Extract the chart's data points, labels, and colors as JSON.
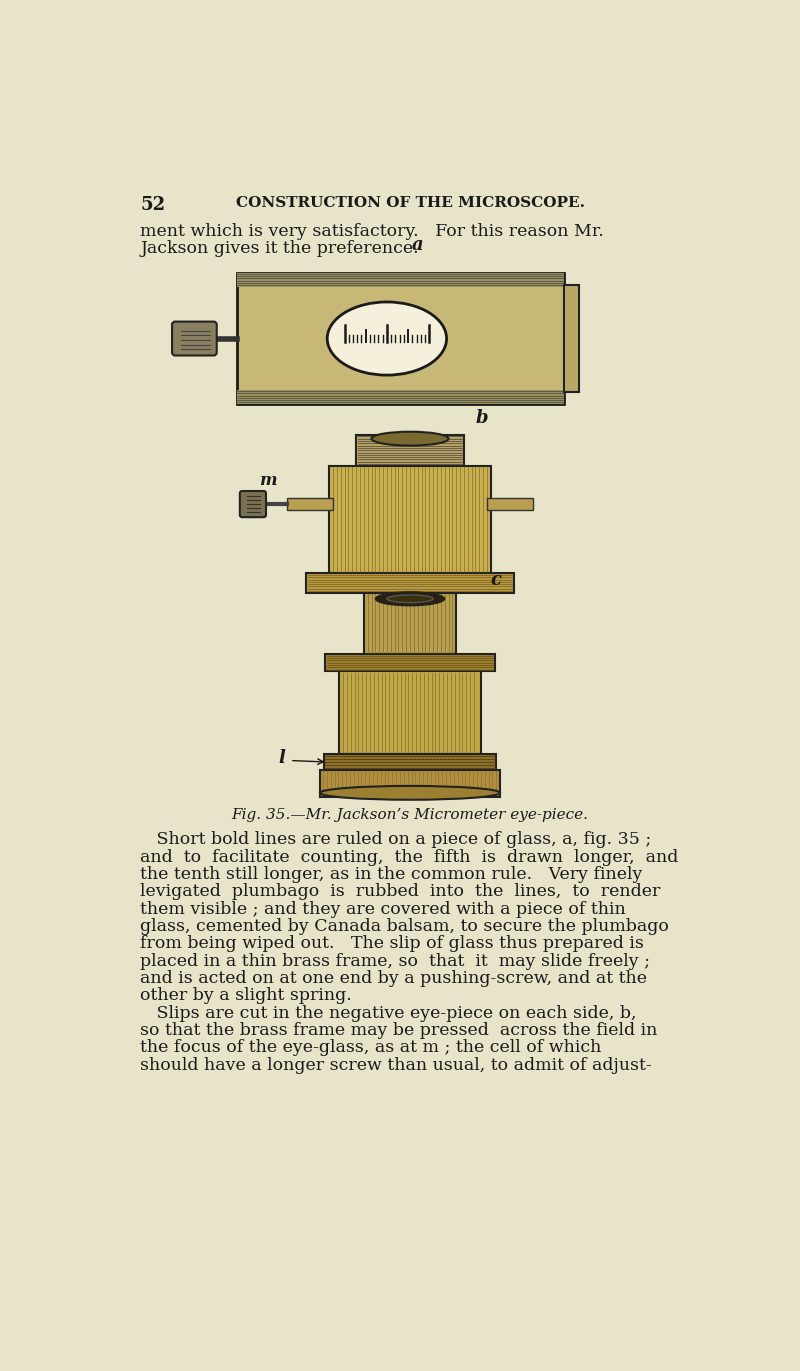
{
  "bg_color": "#e8e4c9",
  "text_color": "#1a1a1a",
  "page_number": "52",
  "header_title": "CONSTRUCTION OF THE MICROSCOPE.",
  "fig_caption": "Fig. 35.—Mr. Jackson’s Micrometer eye-piece.",
  "intro_lines": [
    "ment which is very satisfactory.   For this reason Mr.",
    "Jackson gives it the preference."
  ],
  "body_lines": [
    "   Short bold lines are ruled on a piece of glass, a, fig. 35 ;",
    "and  to  facilitate  counting,  the  fifth  is  drawn  longer,  and",
    "the tenth still longer, as in the common rule.   Very finely",
    "levigated  plumbago  is  rubbed  into  the  lines,  to  render",
    "them visible ; and they are covered with a piece of thin",
    "glass, cemented by Canada balsam, to secure the plumbago",
    "from being wiped out.   The slip of glass thus prepared is",
    "placed in a thin brass frame, so  that  it  may slide freely ;",
    "and is acted on at one end by a pushing-screw, and at the",
    "other by a slight spring.",
    "   Slips are cut in the negative eye-piece on each side, b,",
    "so that the brass frame may be pressed  across the field in",
    "the focus of the eye-glass, as at m ; the cell of which",
    "should have a longer screw than usual, to admit of adjust-"
  ]
}
